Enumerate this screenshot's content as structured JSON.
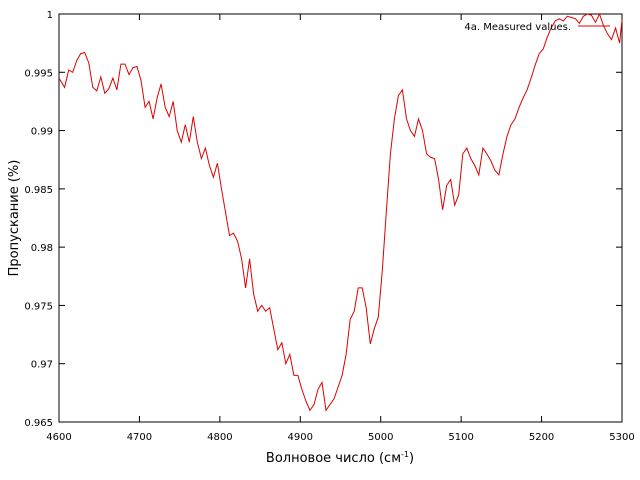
{
  "chart_data": {
    "type": "line",
    "xlabel": "Волновое число (см",
    "xlabel_sup": "-1",
    "xlabel_close": ")",
    "ylabel": "Пропускание (%)",
    "xlim": [
      4600,
      5300
    ],
    "ylim": [
      0.965,
      1.0
    ],
    "x_ticks": [
      4600,
      4700,
      4800,
      4900,
      5000,
      5100,
      5200,
      5300
    ],
    "y_ticks": [
      "0.965",
      "0.97",
      "0.975",
      "0.98",
      "0.985",
      "0.99",
      "0.995",
      "1"
    ],
    "grid": false,
    "legend_position": "top-right",
    "series": [
      {
        "name": "4a. Measured values.",
        "color": "#dd0000",
        "x": [
          4600,
          4607,
          4612,
          4617,
          4622,
          4627,
          4632,
          4637,
          4642,
          4647,
          4652,
          4657,
          4662,
          4667,
          4672,
          4677,
          4682,
          4687,
          4692,
          4697,
          4702,
          4707,
          4712,
          4717,
          4722,
          4727,
          4732,
          4737,
          4742,
          4747,
          4752,
          4757,
          4762,
          4767,
          4772,
          4777,
          4782,
          4787,
          4792,
          4797,
          4802,
          4807,
          4812,
          4817,
          4822,
          4827,
          4832,
          4837,
          4842,
          4847,
          4852,
          4857,
          4862,
          4867,
          4872,
          4877,
          4882,
          4887,
          4892,
          4897,
          4902,
          4907,
          4912,
          4917,
          4922,
          4927,
          4932,
          4937,
          4942,
          4947,
          4952,
          4957,
          4962,
          4967,
          4972,
          4977,
          4982,
          4987,
          4992,
          4997,
          5002,
          5007,
          5012,
          5017,
          5022,
          5027,
          5032,
          5037,
          5042,
          5047,
          5052,
          5057,
          5062,
          5067,
          5072,
          5077,
          5082,
          5087,
          5092,
          5097,
          5102,
          5107,
          5112,
          5117,
          5122,
          5127,
          5132,
          5137,
          5142,
          5147,
          5152,
          5157,
          5162,
          5167,
          5172,
          5177,
          5182,
          5187,
          5192,
          5197,
          5202,
          5207,
          5212,
          5217,
          5222,
          5227,
          5232,
          5237,
          5242,
          5247,
          5252,
          5257,
          5262,
          5267,
          5272,
          5277,
          5282,
          5287,
          5292,
          5297,
          5300
        ],
        "y": [
          0.9945,
          0.9937,
          0.9952,
          0.995,
          0.996,
          0.9966,
          0.9967,
          0.9958,
          0.9937,
          0.9934,
          0.9946,
          0.9932,
          0.9936,
          0.9945,
          0.9935,
          0.9957,
          0.9957,
          0.9948,
          0.9954,
          0.9955,
          0.9943,
          0.992,
          0.9925,
          0.991,
          0.9928,
          0.994,
          0.992,
          0.9912,
          0.9925,
          0.99,
          0.989,
          0.9905,
          0.989,
          0.9912,
          0.989,
          0.9876,
          0.9885,
          0.987,
          0.986,
          0.9872,
          0.985,
          0.983,
          0.981,
          0.9812,
          0.9805,
          0.979,
          0.9765,
          0.979,
          0.976,
          0.9745,
          0.975,
          0.9745,
          0.9748,
          0.973,
          0.9712,
          0.9718,
          0.97,
          0.9708,
          0.969,
          0.969,
          0.9678,
          0.9668,
          0.966,
          0.9665,
          0.9678,
          0.9684,
          0.966,
          0.9665,
          0.967,
          0.968,
          0.969,
          0.9708,
          0.9738,
          0.9745,
          0.9765,
          0.9765,
          0.9748,
          0.9717,
          0.973,
          0.974,
          0.978,
          0.983,
          0.988,
          0.991,
          0.993,
          0.9935,
          0.991,
          0.99,
          0.9895,
          0.991,
          0.99,
          0.988,
          0.9877,
          0.9876,
          0.9858,
          0.9832,
          0.9853,
          0.9858,
          0.9836,
          0.9845,
          0.988,
          0.9885,
          0.9876,
          0.987,
          0.9862,
          0.9885,
          0.988,
          0.9874,
          0.9866,
          0.9862,
          0.988,
          0.9895,
          0.9905,
          0.991,
          0.992,
          0.9928,
          0.9935,
          0.9945,
          0.9956,
          0.9966,
          0.997,
          0.998,
          0.9988,
          0.9994,
          0.9996,
          0.9994,
          0.9998,
          0.9997,
          0.9996,
          0.9992,
          0.9998,
          1.0,
          0.9999,
          0.9993,
          1.0,
          0.999,
          0.9983,
          0.9978,
          0.9988,
          0.9975,
          0.9995
        ]
      }
    ]
  }
}
